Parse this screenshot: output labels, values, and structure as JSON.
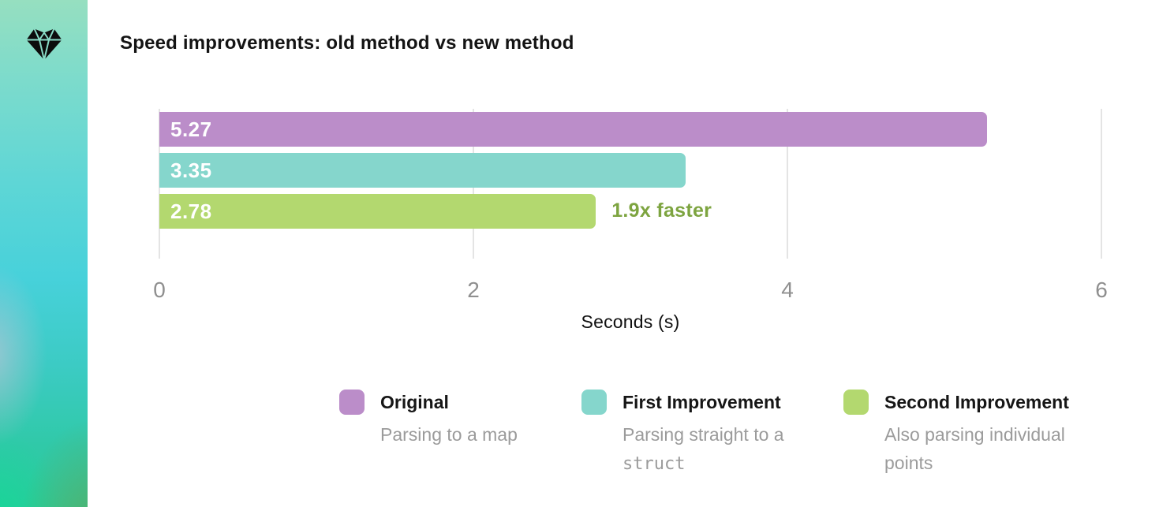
{
  "sidebar": {
    "logo": "diamond-icon"
  },
  "title": "Speed improvements: old method vs new method",
  "chart_data": {
    "type": "bar",
    "orientation": "horizontal",
    "title": "Speed improvements: old method vs new method",
    "xlabel": "Seconds (s)",
    "xlim": [
      0,
      6
    ],
    "xticks": [
      "0",
      "2",
      "4",
      "6"
    ],
    "grid": true,
    "legend_position": "bottom",
    "categories": [
      "Original",
      "First Improvement",
      "Second Improvement"
    ],
    "values": [
      5.27,
      3.35,
      2.78
    ],
    "series": [
      {
        "name": "Original",
        "value": 5.27,
        "bar_label": "5.27",
        "color": "#bb8dc9",
        "description": "Parsing to a map"
      },
      {
        "name": "First Improvement",
        "value": 3.35,
        "bar_label": "3.35",
        "color": "#85d6cc",
        "description": "Parsing straight to a struct",
        "description_code_word": "struct"
      },
      {
        "name": "Second Improvement",
        "value": 2.78,
        "bar_label": "2.78",
        "color": "#b3d86f",
        "description": "Also parsing individual points"
      }
    ],
    "annotation": {
      "text": "1.9x faster",
      "series_index": 2,
      "color": "#7da440"
    }
  },
  "style": {
    "gridline_color": "#e4e4e4",
    "tick_color": "#8f8f8f",
    "bar_value_color": "#ffffff",
    "legend_desc_color": "#9b9b9b"
  }
}
